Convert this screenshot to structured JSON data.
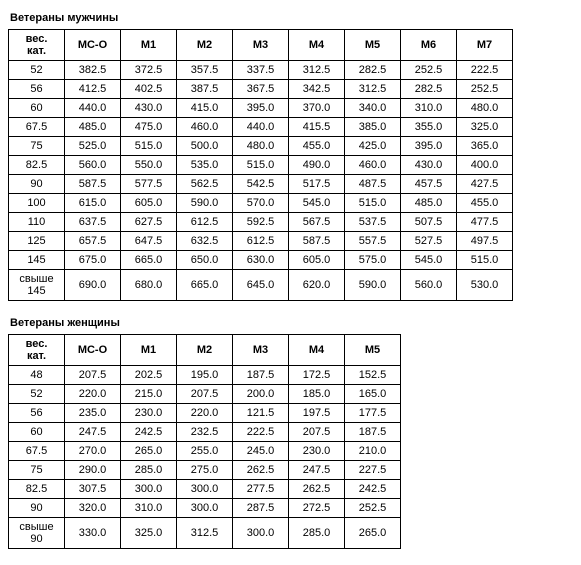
{
  "men": {
    "title": "Ветераны мужчины",
    "headers": [
      "вес. кат.",
      "MC-O",
      "M1",
      "M2",
      "M3",
      "M4",
      "M5",
      "M6",
      "M7"
    ],
    "rows": [
      [
        "52",
        "382.5",
        "372.5",
        "357.5",
        "337.5",
        "312.5",
        "282.5",
        "252.5",
        "222.5"
      ],
      [
        "56",
        "412.5",
        "402.5",
        "387.5",
        "367.5",
        "342.5",
        "312.5",
        "282.5",
        "252.5"
      ],
      [
        "60",
        "440.0",
        "430.0",
        "415.0",
        "395.0",
        "370.0",
        "340.0",
        "310.0",
        "480.0"
      ],
      [
        "67.5",
        "485.0",
        "475.0",
        "460.0",
        "440.0",
        "415.5",
        "385.0",
        "355.0",
        "325.0"
      ],
      [
        "75",
        "525.0",
        "515.0",
        "500.0",
        "480.0",
        "455.0",
        "425.0",
        "395.0",
        "365.0"
      ],
      [
        "82.5",
        "560.0",
        "550.0",
        "535.0",
        "515.0",
        "490.0",
        "460.0",
        "430.0",
        "400.0"
      ],
      [
        "90",
        "587.5",
        "577.5",
        "562.5",
        "542.5",
        "517.5",
        "487.5",
        "457.5",
        "427.5"
      ],
      [
        "100",
        "615.0",
        "605.0",
        "590.0",
        "570.0",
        "545.0",
        "515.0",
        "485.0",
        "455.0"
      ],
      [
        "110",
        "637.5",
        "627.5",
        "612.5",
        "592.5",
        "567.5",
        "537.5",
        "507.5",
        "477.5"
      ],
      [
        "125",
        "657.5",
        "647.5",
        "632.5",
        "612.5",
        "587.5",
        "557.5",
        "527.5",
        "497.5"
      ],
      [
        "145",
        "675.0",
        "665.0",
        "650.0",
        "630.0",
        "605.0",
        "575.0",
        "545.0",
        "515.0"
      ],
      [
        "свыше 145",
        "690.0",
        "680.0",
        "665.0",
        "645.0",
        "620.0",
        "590.0",
        "560.0",
        "530.0"
      ]
    ]
  },
  "women": {
    "title": "Ветераны женщины",
    "headers": [
      "вес. кат.",
      "MC-O",
      "M1",
      "M2",
      "M3",
      "M4",
      "M5"
    ],
    "rows": [
      [
        "48",
        "207.5",
        "202.5",
        "195.0",
        "187.5",
        "172.5",
        "152.5"
      ],
      [
        "52",
        "220.0",
        "215.0",
        "207.5",
        "200.0",
        "185.0",
        "165.0"
      ],
      [
        "56",
        "235.0",
        "230.0",
        "220.0",
        "121.5",
        "197.5",
        "177.5"
      ],
      [
        "60",
        "247.5",
        "242.5",
        "232.5",
        "222.5",
        "207.5",
        "187.5"
      ],
      [
        "67.5",
        "270.0",
        "265.0",
        "255.0",
        "245.0",
        "230.0",
        "210.0"
      ],
      [
        "75",
        "290.0",
        "285.0",
        "275.0",
        "262.5",
        "247.5",
        "227.5"
      ],
      [
        "82.5",
        "307.5",
        "300.0",
        "300.0",
        "277.5",
        "262.5",
        "242.5"
      ],
      [
        "90",
        "320.0",
        "310.0",
        "300.0",
        "287.5",
        "272.5",
        "252.5"
      ],
      [
        "свыше 90",
        "330.0",
        "325.0",
        "312.5",
        "300.0",
        "285.0",
        "265.0"
      ]
    ]
  }
}
